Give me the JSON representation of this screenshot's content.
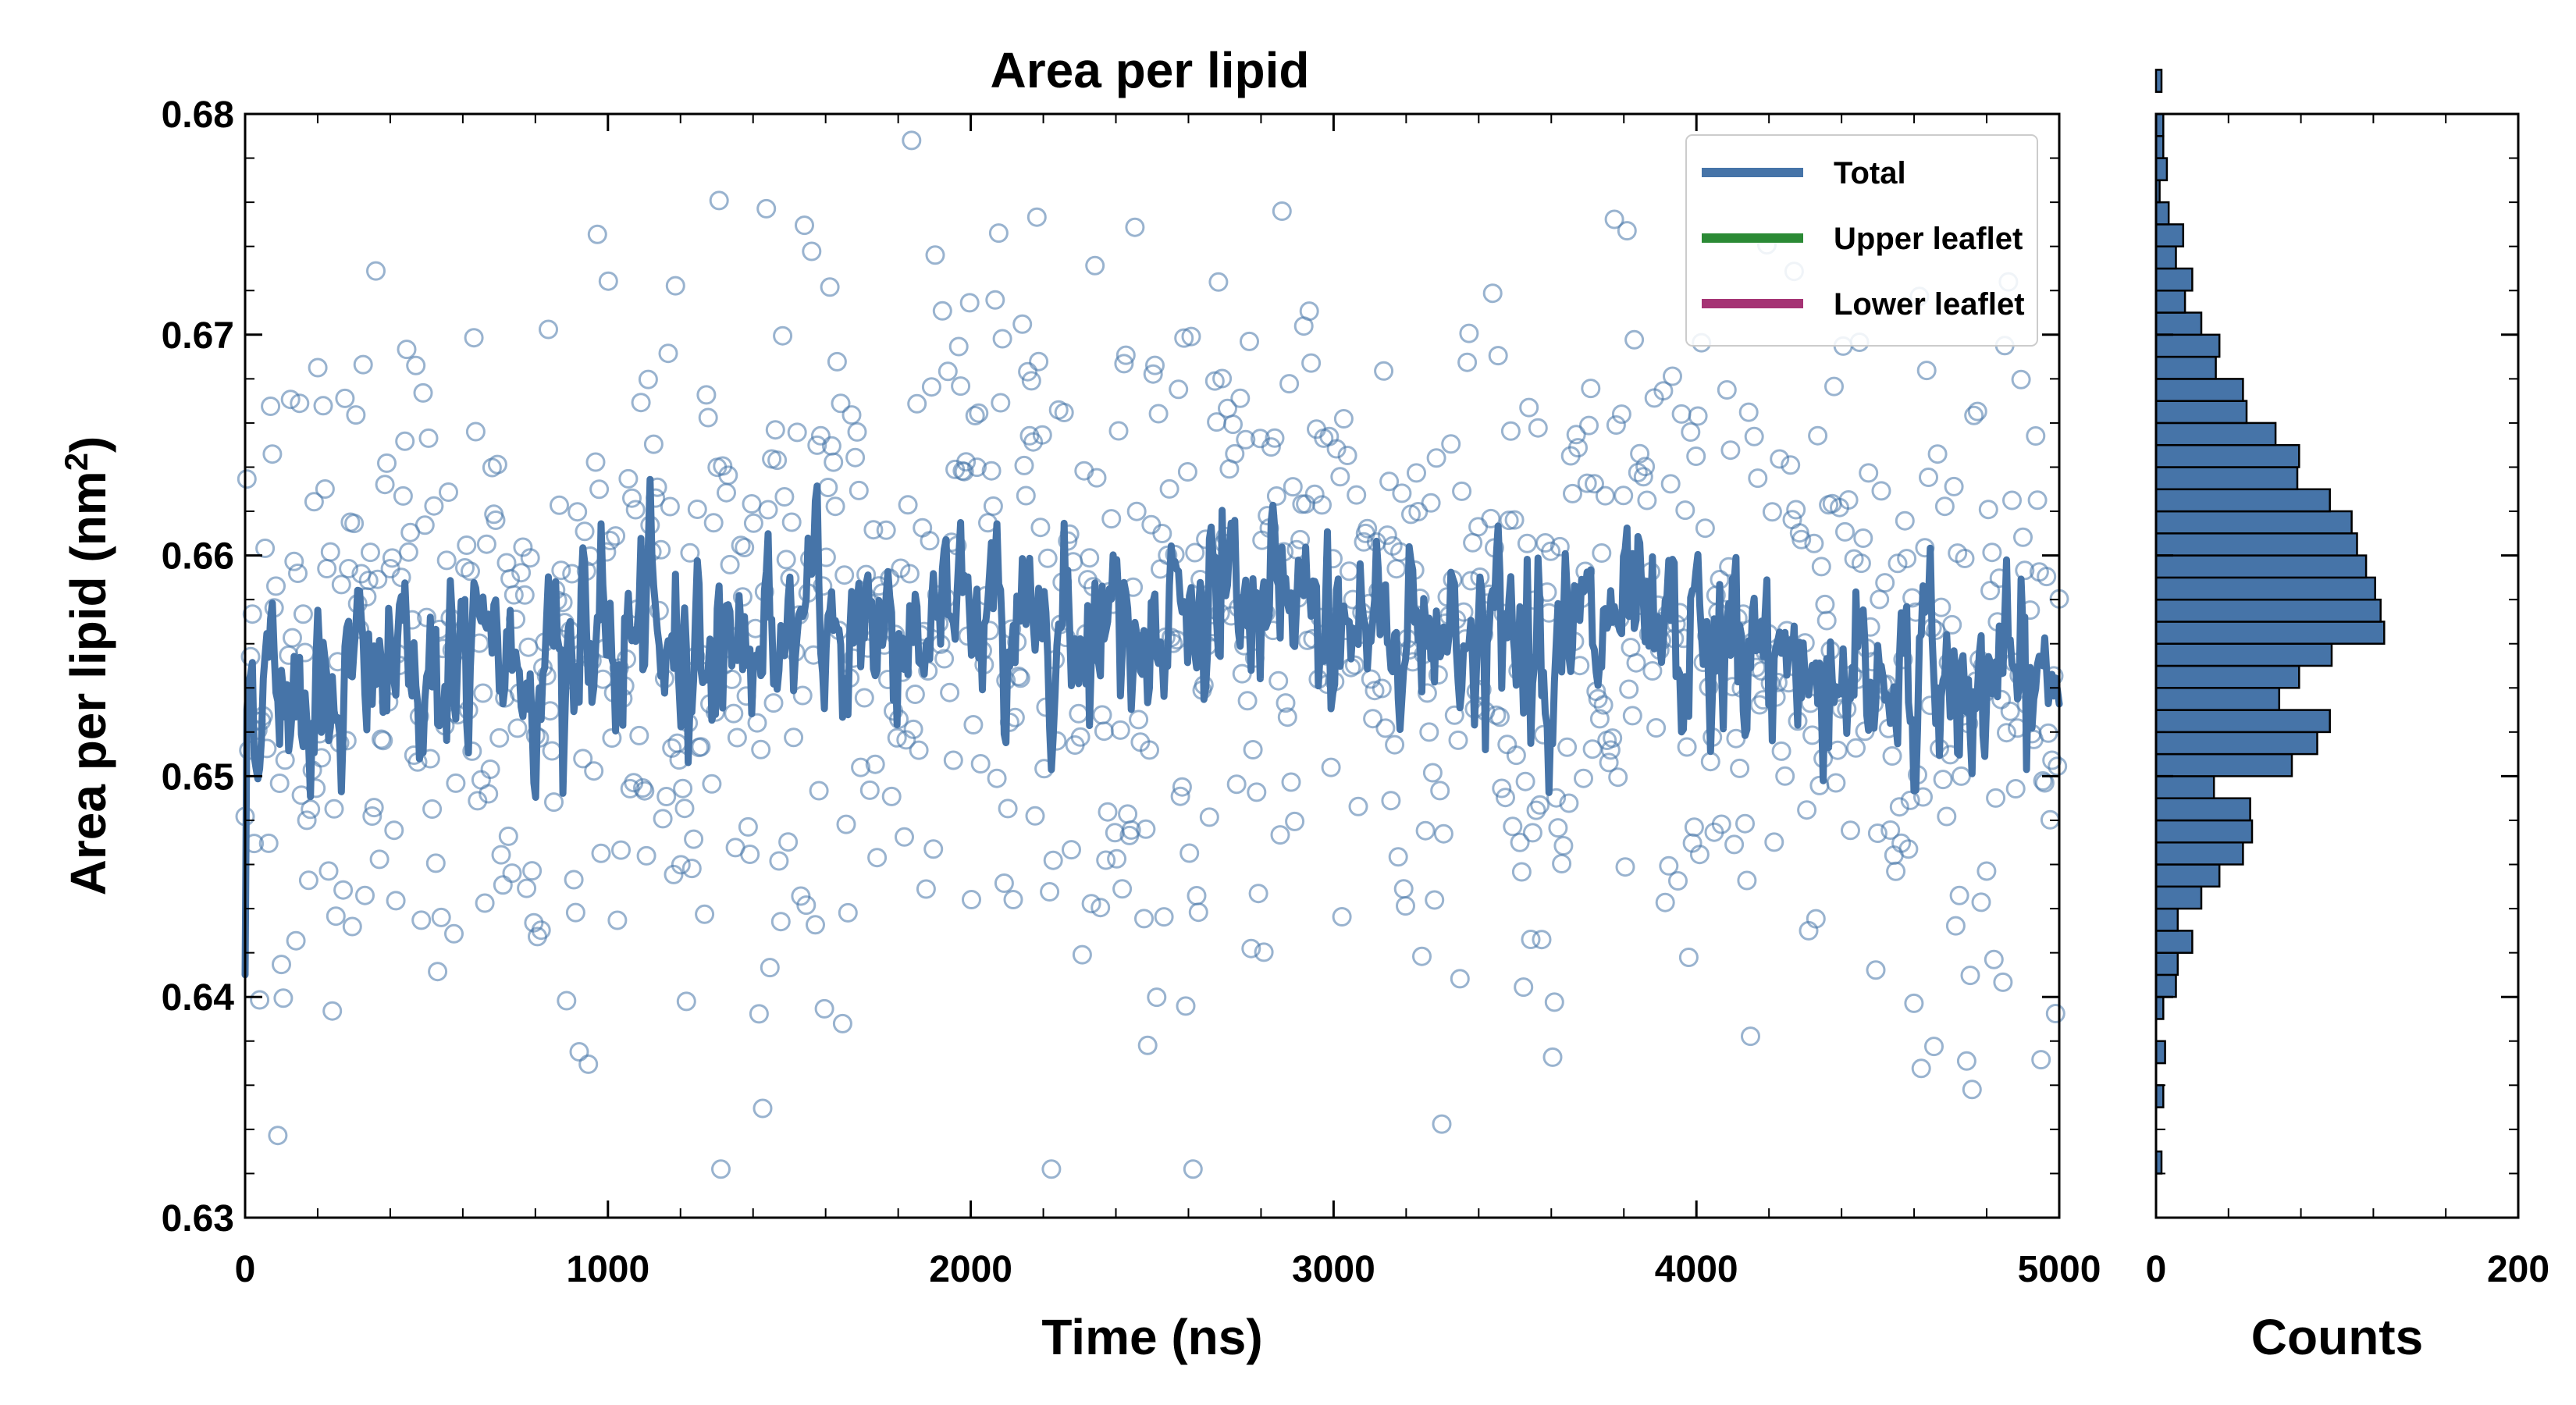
{
  "chart_data": [
    {
      "type": "line+scatter",
      "title": "Area per lipid",
      "xlabel": "Time (ns)",
      "ylabel": "Area per lipid (nm",
      "ylabel_sup": "2",
      "ylabel_close": ")",
      "xlim": [
        0,
        5000
      ],
      "ylim": [
        0.63,
        0.68
      ],
      "xticks": [
        0,
        1000,
        2000,
        3000,
        4000,
        5000
      ],
      "xtick_labels": [
        "0",
        "1000",
        "2000",
        "3000",
        "4000",
        "5000"
      ],
      "yticks": [
        0.63,
        0.64,
        0.65,
        0.66,
        0.67,
        0.68
      ],
      "ytick_labels": [
        "0.63",
        "0.64",
        "0.65",
        "0.66",
        "0.67",
        "0.68"
      ],
      "legend_position": "top-right",
      "series": [
        {
          "name": "Total",
          "color": "#4674a8",
          "kind": "line+scatter",
          "n_points": 1000,
          "x_start": 0,
          "x_end": 5000,
          "mean": 0.6555,
          "line_std": 0.0022,
          "scatter_std": 0.0075,
          "start_value": 0.641
        },
        {
          "name": "Upper leaflet",
          "color": "#2b8a35",
          "kind": "line"
        },
        {
          "name": "Lower leaflet",
          "color": "#a53374",
          "kind": "line"
        }
      ]
    },
    {
      "type": "histogram",
      "orientation": "horizontal",
      "xlabel": "Counts",
      "xlim": [
        0,
        200
      ],
      "xticks": [
        0,
        200
      ],
      "xtick_labels": [
        "0",
        "200"
      ],
      "ylim": [
        0.63,
        0.68
      ],
      "bin_start": 0.632,
      "bin_width": 0.001,
      "counts": [
        3,
        0,
        0,
        4,
        0,
        5,
        0,
        4,
        11,
        12,
        20,
        12,
        25,
        35,
        48,
        53,
        52,
        32,
        75,
        89,
        96,
        68,
        79,
        97,
        126,
        124,
        121,
        116,
        111,
        108,
        96,
        78,
        79,
        66,
        50,
        48,
        33,
        35,
        25,
        16,
        20,
        11,
        15,
        7,
        2,
        6,
        4,
        4,
        0,
        3
      ],
      "color": "#4674a8"
    }
  ]
}
